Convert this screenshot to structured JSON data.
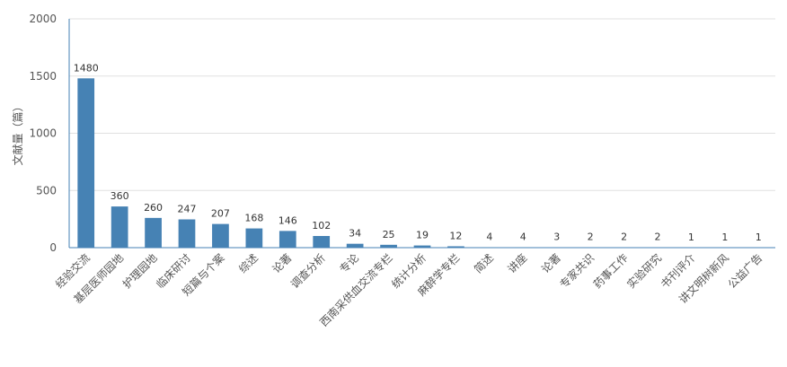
{
  "chart_data": {
    "type": "bar",
    "title": "",
    "xlabel": "",
    "ylabel": "文献量（篇）",
    "ylim": [
      0,
      2000
    ],
    "yticks": [
      0,
      500,
      1000,
      1500,
      2000
    ],
    "grid": true,
    "legend": "none",
    "bar_color": "#4682b4",
    "categories": [
      "经验交流",
      "基层医师园地",
      "护理园地",
      "临床研讨",
      "短篇与个案",
      "综述",
      "论著",
      "调查分析",
      "专论",
      "西南采供血交流专栏",
      "统计分析",
      "麻醉学专栏",
      "简述",
      "讲座",
      "论著",
      "专家共识",
      "药事工作",
      "实验研究",
      "书刊评介",
      "讲文明树新风",
      "公益广告"
    ],
    "values": [
      1480,
      360,
      260,
      247,
      207,
      168,
      146,
      102,
      34,
      25,
      19,
      12,
      4,
      4,
      3,
      2,
      2,
      2,
      1,
      1,
      1
    ]
  }
}
